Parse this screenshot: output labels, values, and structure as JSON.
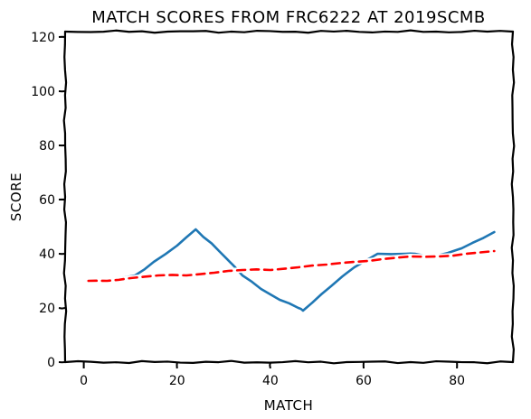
{
  "chart_data": {
    "type": "line",
    "title": "MATCH SCORES FROM FRC6222 AT 2019SCMB",
    "xlabel": "MATCH",
    "ylabel": "SCORE",
    "xlim": [
      -4,
      92
    ],
    "ylim": [
      0,
      122
    ],
    "xticks": [
      0,
      20,
      40,
      60,
      80
    ],
    "yticks": [
      0,
      20,
      40,
      60,
      80,
      100,
      120
    ],
    "grid": false,
    "series": [
      {
        "style": "solid",
        "color": "#1f77b4",
        "x": [
          1,
          5,
          11,
          15,
          20,
          24,
          29,
          34,
          38,
          42,
          46,
          47,
          53,
          58,
          63,
          69,
          71,
          75,
          81,
          88
        ],
        "y": [
          30,
          30,
          32,
          37,
          43,
          49,
          41,
          32,
          27,
          23,
          20,
          19,
          28,
          35,
          40,
          40,
          40,
          39,
          42,
          48
        ]
      },
      {
        "style": "dashed",
        "color": "#ff0000",
        "x": [
          1,
          5,
          10,
          16,
          22,
          28,
          34,
          40,
          46,
          52,
          58,
          64,
          70,
          76,
          82,
          88
        ],
        "y": [
          30,
          30,
          31,
          32,
          32,
          33,
          34,
          34,
          35,
          36,
          37,
          38,
          39,
          39,
          40,
          41
        ]
      }
    ]
  }
}
